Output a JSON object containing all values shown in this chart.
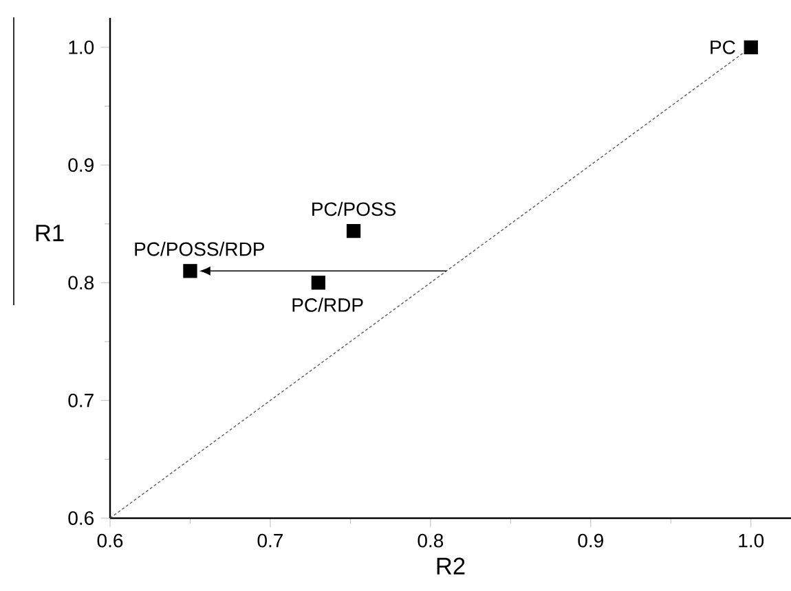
{
  "chart_data": {
    "type": "scatter",
    "xlabel": "R2",
    "ylabel": "R1",
    "xlim": [
      0.6,
      1.025
    ],
    "ylim": [
      0.6,
      1.025
    ],
    "xticks": [
      0.6,
      0.7,
      0.8,
      0.9,
      {
        "value": 1,
        "label": "1.0"
      }
    ],
    "yticks": [
      0.6,
      0.7,
      0.8,
      0.9,
      {
        "value": 1,
        "label": "1.0"
      }
    ],
    "series": [
      {
        "color": "#000000",
        "marker": "square",
        "x": [
          1.0,
          0.752,
          0.73,
          0.65
        ],
        "values": [
          1.0,
          0.844,
          0.8,
          0.81
        ]
      },
      {
        "type": "line",
        "color": "#555555",
        "line_style": "dotted",
        "marker": "none",
        "x": [
          0.6,
          1.0
        ],
        "values": [
          0.6,
          1.0
        ]
      }
    ],
    "annotations": [
      {
        "text": "PC",
        "x": 1.0,
        "y": 1.0
      },
      {
        "text": "PC/POSS",
        "x": 0.752,
        "y": 0.844
      },
      {
        "text": "PC/RDP",
        "x": 0.73,
        "y": 0.8
      },
      {
        "text": "PC/POSS/RDP",
        "x": 0.65,
        "y": 0.81
      }
    ]
  }
}
